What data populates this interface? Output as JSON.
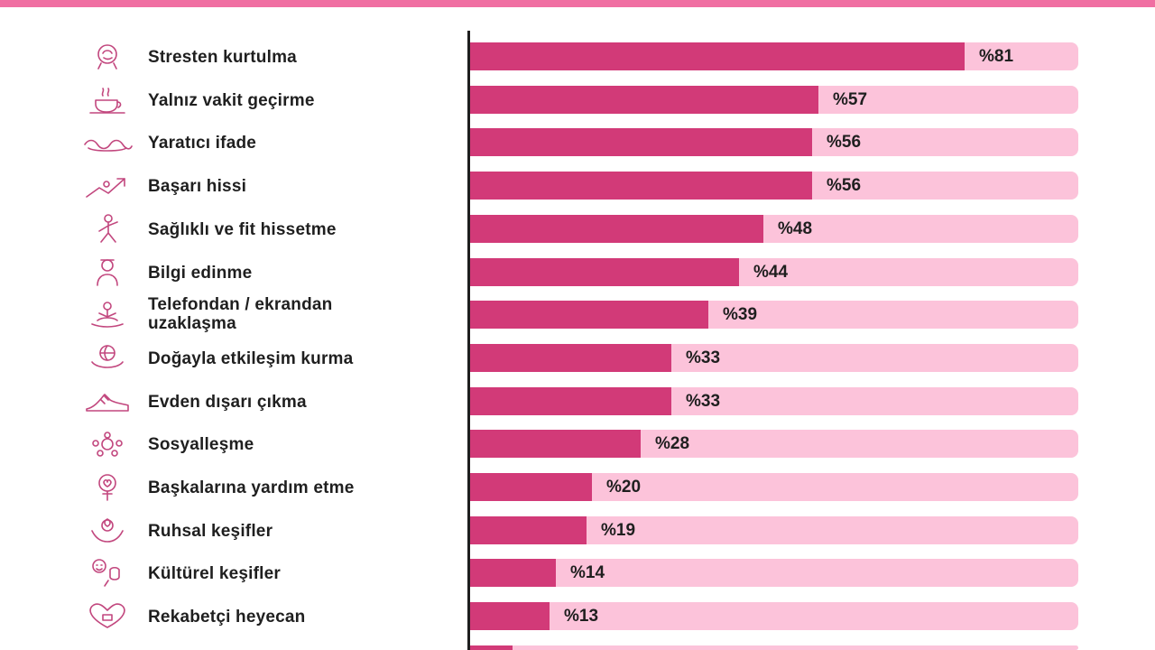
{
  "colors": {
    "band": "#f06fa2",
    "bar_fill": "#d23a78",
    "bar_track": "#fcc3da",
    "icon_stroke": "#c2477e",
    "text": "#1f1f1f"
  },
  "chart_data": {
    "type": "bar",
    "orientation": "horizontal",
    "title": "",
    "xlabel": "",
    "ylabel": "",
    "xlim": [
      0,
      100
    ],
    "value_prefix": "%",
    "grid": false,
    "legend": "none",
    "categories": [
      "Stresten kurtulma",
      "Yalnız vakit geçirme",
      "Yaratıcı ifade",
      "Başarı hissi",
      "Sağlıklı ve fit hissetme",
      "Bilgi edinme",
      "Telefondan / ekrandan uzaklaşma",
      "Doğayla etkileşim kurma",
      "Evden dışarı çıkma",
      "Sosyalleşme",
      "Başkalarına yardım etme",
      "Ruhsal keşifler",
      "Kültürel keşifler",
      "Rekabetçi heyecan"
    ],
    "category_lines": [
      [
        "Stresten kurtulma"
      ],
      [
        "Yalnız vakit geçirme"
      ],
      [
        "Yaratıcı ifade"
      ],
      [
        "Başarı hissi"
      ],
      [
        "Sağlıklı ve fit hissetme"
      ],
      [
        "Bilgi edinme"
      ],
      [
        "Telefondan / ekrandan",
        "uzaklaşma"
      ],
      [
        "Doğayla etkileşim kurma"
      ],
      [
        "Evden dışarı çıkma"
      ],
      [
        "Sosyalleşme"
      ],
      [
        "Başkalarına yardım etme"
      ],
      [
        "Ruhsal keşifler"
      ],
      [
        "Kültürel keşifler"
      ],
      [
        "Rekabetçi heyecan"
      ]
    ],
    "values": [
      81,
      57,
      56,
      56,
      48,
      44,
      39,
      33,
      33,
      28,
      20,
      19,
      14,
      13
    ],
    "value_labels": [
      "%81",
      "%57",
      "%56",
      "%56",
      "%48",
      "%44",
      "%39",
      "%33",
      "%33",
      "%28",
      "%20",
      "%19",
      "%14",
      "%13"
    ],
    "icons": [
      "head-brain-icon",
      "tea-cup-icon",
      "creative-hands-icon",
      "achievement-climb-icon",
      "fitness-person-icon",
      "learning-person-icon",
      "meditation-icon",
      "nature-globe-hands-icon",
      "sneaker-icon",
      "social-group-icon",
      "helping-heart-icon",
      "spiritual-hands-icon",
      "culture-masks-icon",
      "competition-heart-icon"
    ],
    "partial_last_bar_value": 7
  }
}
